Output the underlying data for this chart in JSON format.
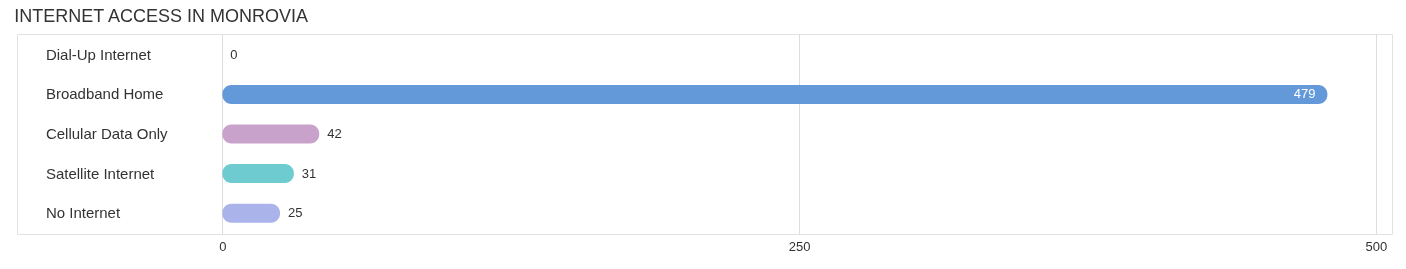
{
  "chart_data": {
    "type": "bar",
    "orientation": "horizontal",
    "title": "INTERNET ACCESS IN MONROVIA",
    "categories": [
      "Dial-Up Internet",
      "Broadband Home",
      "Cellular Data Only",
      "Satellite Internet",
      "No Internet"
    ],
    "values": [
      0,
      479,
      42,
      31,
      25
    ],
    "colors": [
      "#f2a9a9",
      "#6399d9",
      "#c9a2cb",
      "#6ecbd0",
      "#aab3ea"
    ],
    "xlim": [
      -89,
      507
    ],
    "xticks": [
      0,
      250,
      500
    ],
    "grid": "x",
    "data_labels": true
  }
}
